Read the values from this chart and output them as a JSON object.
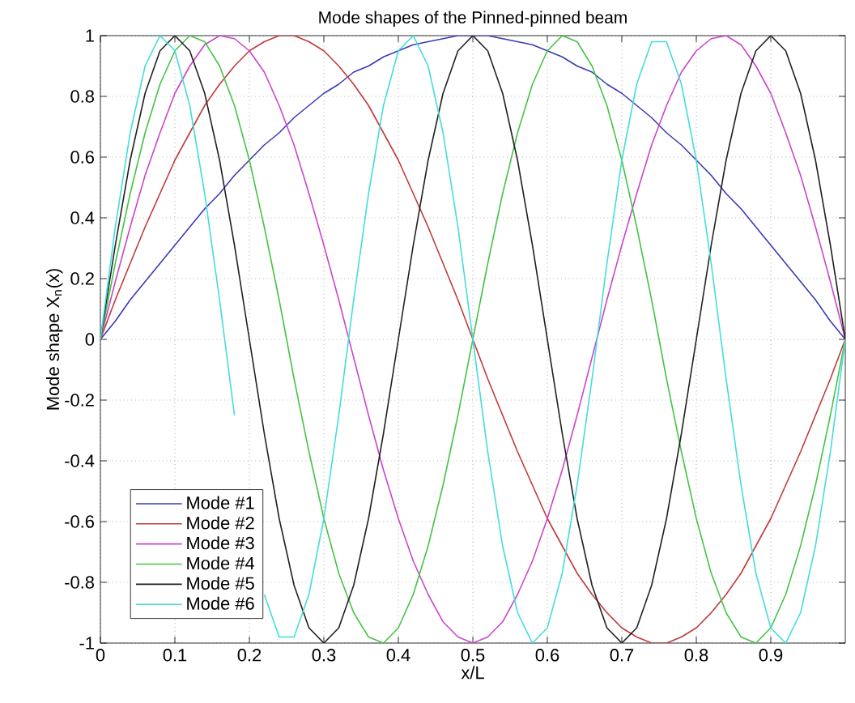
{
  "chart_data": {
    "type": "line",
    "title": "Mode shapes of the Pinned-pinned beam",
    "xlabel": "x/L",
    "ylabel": "Mode shape X$_{n}$(x)",
    "x": [
      0,
      0.02,
      0.04,
      0.06,
      0.08,
      0.1,
      0.12,
      0.14,
      0.16,
      0.18,
      0.2,
      0.22,
      0.24,
      0.26,
      0.28,
      0.3,
      0.32,
      0.34,
      0.36,
      0.38,
      0.4,
      0.42,
      0.44,
      0.46,
      0.48,
      0.5,
      0.52,
      0.54,
      0.56,
      0.58,
      0.6,
      0.62,
      0.64,
      0.66,
      0.68,
      0.7,
      0.72,
      0.74,
      0.76,
      0.78,
      0.8,
      0.82,
      0.84,
      0.86,
      0.88,
      0.9,
      0.92,
      0.94,
      0.96,
      0.98,
      1
    ],
    "series": [
      {
        "name": "Mode #1",
        "color": "#3a3ab8",
        "values": [
          0,
          0.06,
          0.13,
          0.19,
          0.25,
          0.31,
          0.37,
          0.43,
          0.48,
          0.54,
          0.59,
          0.64,
          0.68,
          0.73,
          0.77,
          0.81,
          0.84,
          0.88,
          0.9,
          0.93,
          0.95,
          0.97,
          0.98,
          0.99,
          1,
          1,
          1,
          0.99,
          0.98,
          0.97,
          0.95,
          0.93,
          0.9,
          0.88,
          0.84,
          0.81,
          0.77,
          0.73,
          0.68,
          0.64,
          0.59,
          0.54,
          0.48,
          0.43,
          0.37,
          0.31,
          0.25,
          0.19,
          0.13,
          0.06,
          0
        ]
      },
      {
        "name": "Mode #2",
        "color": "#c03a3a",
        "values": [
          0,
          0.13,
          0.25,
          0.37,
          0.48,
          0.59,
          0.68,
          0.77,
          0.84,
          0.9,
          0.95,
          0.98,
          1,
          1,
          0.98,
          0.95,
          0.9,
          0.84,
          0.77,
          0.68,
          0.59,
          0.48,
          0.37,
          0.25,
          0.13,
          0,
          -0.13,
          -0.25,
          -0.37,
          -0.48,
          -0.59,
          -0.68,
          -0.77,
          -0.84,
          -0.9,
          -0.95,
          -0.98,
          -1,
          -1,
          -0.98,
          -0.95,
          -0.9,
          -0.84,
          -0.77,
          -0.68,
          -0.59,
          -0.48,
          -0.37,
          -0.25,
          -0.13,
          0
        ]
      },
      {
        "name": "Mode #3",
        "color": "#cc44cc",
        "values": [
          0,
          0.19,
          0.37,
          0.54,
          0.68,
          0.81,
          0.9,
          0.97,
          1,
          0.99,
          0.95,
          0.88,
          0.77,
          0.64,
          0.48,
          0.31,
          0.13,
          -0.06,
          -0.25,
          -0.43,
          -0.59,
          -0.73,
          -0.84,
          -0.93,
          -0.98,
          -1,
          -0.98,
          -0.93,
          -0.84,
          -0.73,
          -0.59,
          -0.43,
          -0.25,
          -0.06,
          0.13,
          0.31,
          0.48,
          0.64,
          0.77,
          0.88,
          0.95,
          0.99,
          1,
          0.97,
          0.9,
          0.81,
          0.68,
          0.54,
          0.37,
          0.19,
          0
        ]
      },
      {
        "name": "Mode #4",
        "color": "#44c444",
        "values": [
          0,
          0.25,
          0.48,
          0.68,
          0.84,
          0.95,
          1,
          0.98,
          0.9,
          0.77,
          0.59,
          0.37,
          0.13,
          -0.13,
          -0.37,
          -0.59,
          -0.77,
          -0.9,
          -0.98,
          -1,
          -0.95,
          -0.84,
          -0.68,
          -0.48,
          -0.25,
          0,
          0.25,
          0.48,
          0.68,
          0.84,
          0.95,
          1,
          0.98,
          0.9,
          0.77,
          0.59,
          0.37,
          0.13,
          -0.13,
          -0.37,
          -0.59,
          -0.77,
          -0.9,
          -0.98,
          -1,
          -0.95,
          -0.84,
          -0.68,
          -0.48,
          -0.25,
          0
        ]
      },
      {
        "name": "Mode #5",
        "color": "#202020",
        "values": [
          0,
          0.31,
          0.59,
          0.81,
          0.95,
          1,
          0.95,
          0.81,
          0.59,
          0.31,
          0,
          -0.31,
          -0.59,
          -0.81,
          -0.95,
          -1,
          -0.95,
          -0.81,
          -0.59,
          -0.31,
          0,
          0.31,
          0.59,
          0.81,
          0.95,
          1,
          0.95,
          0.81,
          0.59,
          0.31,
          0,
          -0.31,
          -0.59,
          -0.81,
          -0.95,
          -1,
          -0.95,
          -0.81,
          -0.59,
          -0.31,
          0,
          0.31,
          0.59,
          0.81,
          0.95,
          1,
          0.95,
          0.81,
          0.59,
          0.31,
          0
        ]
      },
      {
        "name": "Mode #6",
        "color": "#44dcdc",
        "values": [
          0,
          0.37,
          0.68,
          0.9,
          1,
          0.95,
          0.77,
          0.48,
          0.13,
          -0.25,
          null,
          -0.84,
          -0.98,
          -0.98,
          -0.84,
          -0.59,
          -0.25,
          0.13,
          0.48,
          0.77,
          0.95,
          1,
          0.9,
          0.68,
          0.37,
          0,
          -0.37,
          -0.68,
          -0.9,
          -1,
          -0.95,
          -0.77,
          -0.48,
          -0.13,
          0.25,
          0.59,
          0.84,
          0.98,
          0.98,
          0.84,
          0.59,
          0.25,
          -0.13,
          -0.48,
          -0.77,
          -0.95,
          -1,
          -0.9,
          -0.68,
          -0.37,
          0
        ]
      }
    ],
    "xlim": [
      0,
      1
    ],
    "ylim": [
      -1,
      1
    ],
    "xticks": [
      0,
      0.1,
      0.2,
      0.3,
      0.4,
      0.5,
      0.6,
      0.7,
      0.8,
      0.9
    ],
    "yticks": [
      -1,
      -0.8,
      -0.6,
      -0.4,
      -0.2,
      0,
      0.2,
      0.4,
      0.6,
      0.8,
      1
    ],
    "grid": true,
    "legend": "bottom left",
    "marker": "none",
    "line_style": "solid"
  }
}
